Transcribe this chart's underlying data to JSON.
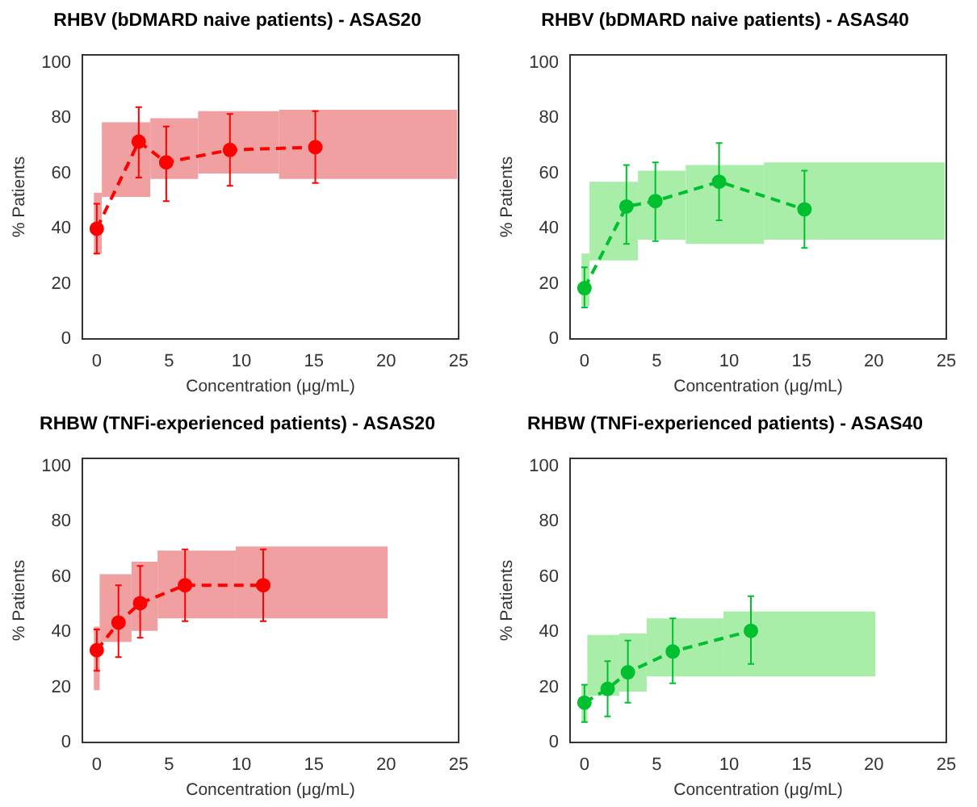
{
  "chart_data": [
    {
      "type": "line",
      "title": "RHBV (bDMARD naive patients) - ASAS20",
      "xlabel": "Concentration (μg/mL)",
      "ylabel": "% Patients",
      "xlim": [
        -1,
        25
      ],
      "ylim": [
        0,
        103
      ],
      "xticks": [
        0,
        5,
        10,
        15,
        20,
        25
      ],
      "yticks": [
        0,
        20,
        40,
        60,
        80,
        100
      ],
      "grid": false,
      "legend": false,
      "series": [
        {
          "type": "area",
          "color": "#f0a0a0",
          "x": [
            -0.2,
            0.35,
            0.35,
            3.7,
            3.7,
            7,
            7,
            12.6,
            12.6,
            24.9
          ],
          "lower": [
            31,
            31,
            51.5,
            51.5,
            58,
            58,
            60,
            60,
            58,
            58
          ],
          "upper": [
            53,
            53,
            78.5,
            78.5,
            80,
            80,
            82.5,
            82.5,
            83,
            83
          ],
          "values": [
            null,
            null,
            null,
            null,
            null,
            null,
            null,
            null,
            null,
            null
          ]
        },
        {
          "type": "line",
          "color": "#ff0000",
          "line_style": "dashed",
          "marker": "circle",
          "x": [
            0,
            2.9,
            4.8,
            9.2,
            15.1
          ],
          "values": [
            40,
            71.5,
            64,
            68.5,
            69.5
          ],
          "errors": [
            [
              31,
              49
            ],
            [
              58.5,
              84
            ],
            [
              50,
              77
            ],
            [
              55.5,
              81.5
            ],
            [
              56.5,
              82.5
            ]
          ]
        }
      ]
    },
    {
      "type": "line",
      "title": "RHBV (bDMARD naive patients) - ASAS40",
      "xlabel": "Concentration (μg/mL)",
      "ylabel": "% Patients",
      "xlim": [
        -1,
        25
      ],
      "ylim": [
        0,
        103
      ],
      "xticks": [
        0,
        5,
        10,
        15,
        20,
        25
      ],
      "yticks": [
        0,
        20,
        40,
        60,
        80,
        100
      ],
      "grid": false,
      "legend": false,
      "series": [
        {
          "type": "area",
          "color": "#a8eea8",
          "x": [
            -0.2,
            0.35,
            0.35,
            3.7,
            3.7,
            7,
            7,
            12.4,
            12.4,
            24.9
          ],
          "lower": [
            12,
            12,
            28.5,
            28.5,
            36,
            36,
            34.5,
            34.5,
            36,
            36
          ],
          "upper": [
            31,
            31,
            57,
            57,
            61,
            61,
            63,
            63,
            64,
            64
          ],
          "values": [
            null,
            null,
            null,
            null,
            null,
            null,
            null,
            null,
            null,
            null
          ]
        },
        {
          "type": "line",
          "color": "#00c030",
          "line_style": "dashed",
          "marker": "circle",
          "x": [
            0,
            2.9,
            4.9,
            9.3,
            15.2
          ],
          "values": [
            18.5,
            48,
            50,
            57,
            47
          ],
          "errors": [
            [
              11.5,
              26
            ],
            [
              34.5,
              63
            ],
            [
              35.5,
              64
            ],
            [
              43,
              71
            ],
            [
              33,
              61
            ]
          ]
        }
      ]
    },
    {
      "type": "line",
      "title": "RHBW (TNFi-experienced patients) - ASAS20",
      "xlabel": "Concentration (μg/mL)",
      "ylabel": "% Patients",
      "xlim": [
        -1,
        25
      ],
      "ylim": [
        0,
        103
      ],
      "xticks": [
        0,
        5,
        10,
        15,
        20,
        25
      ],
      "yticks": [
        0,
        20,
        40,
        60,
        80,
        100
      ],
      "grid": false,
      "legend": false,
      "series": [
        {
          "type": "area",
          "color": "#f0a0a0",
          "x": [
            -0.2,
            0.2,
            0.2,
            2.4,
            2.4,
            4.2,
            4.2,
            9.6,
            9.6,
            20.1
          ],
          "lower": [
            19,
            19,
            36.5,
            36.5,
            40.5,
            40.5,
            45,
            45,
            45,
            45
          ],
          "upper": [
            42,
            42,
            61,
            61,
            65.5,
            65.5,
            69.5,
            69.5,
            71,
            71
          ],
          "values": [
            null,
            null,
            null,
            null,
            null,
            null,
            null,
            null,
            null,
            null
          ]
        },
        {
          "type": "line",
          "color": "#ff0000",
          "line_style": "dashed",
          "marker": "circle",
          "x": [
            0,
            1.5,
            3,
            6.1,
            11.5
          ],
          "values": [
            33.5,
            43.5,
            50.5,
            57,
            57
          ],
          "errors": [
            [
              26,
              41
            ],
            [
              31,
              57
            ],
            [
              38,
              64
            ],
            [
              44,
              70
            ],
            [
              44,
              70
            ]
          ]
        }
      ]
    },
    {
      "type": "line",
      "title": "RHBW (TNFi-experienced patients) - ASAS40",
      "xlabel": "Concentration (μg/mL)",
      "ylabel": "% Patients",
      "xlim": [
        -1,
        25
      ],
      "ylim": [
        0,
        103
      ],
      "xticks": [
        0,
        5,
        10,
        15,
        20,
        25
      ],
      "yticks": [
        0,
        20,
        40,
        60,
        80,
        100
      ],
      "grid": false,
      "legend": false,
      "series": [
        {
          "type": "area",
          "color": "#a8eea8",
          "x": [
            -0.2,
            0.2,
            0.2,
            2.4,
            2.4,
            4.3,
            4.3,
            9.6,
            9.6,
            20.1
          ],
          "lower": [
            7.5,
            7.5,
            17,
            17,
            18.5,
            18.5,
            24,
            24,
            24,
            24
          ],
          "upper": [
            21,
            21,
            39,
            39,
            39.5,
            39.5,
            45,
            45,
            47.5,
            47.5
          ],
          "values": [
            null,
            null,
            null,
            null,
            null,
            null,
            null,
            null,
            null,
            null
          ]
        },
        {
          "type": "line",
          "color": "#00c030",
          "line_style": "dashed",
          "marker": "circle",
          "x": [
            0,
            1.6,
            3,
            6.1,
            11.5
          ],
          "values": [
            14.5,
            19.5,
            25.5,
            33,
            40.5
          ],
          "errors": [
            [
              7.5,
              21
            ],
            [
              9.5,
              29.5
            ],
            [
              14.5,
              37
            ],
            [
              21.5,
              45
            ],
            [
              28.5,
              53
            ]
          ]
        }
      ]
    }
  ]
}
